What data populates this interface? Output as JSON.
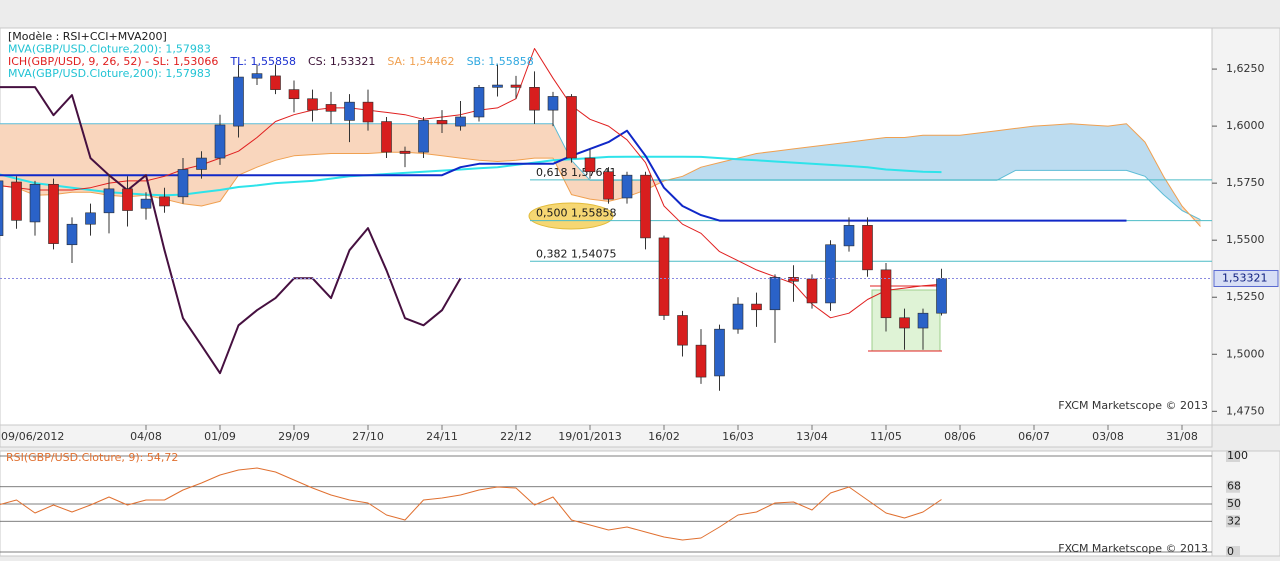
{
  "chart_data": [
    {
      "type": "candlestick",
      "header": [
        [
          {
            "text": "[Modèle : RSI+CCI+MVA200]",
            "color": "#1a1a1a"
          }
        ],
        [
          {
            "text": "MVA(GBP/USD.Cloture,200): 1,57983",
            "color": "#22c3d4"
          }
        ],
        [
          {
            "text": "ICH(GBP/USD, 9, 26, 52) -  SL: 1,53066",
            "color": "#e02020"
          },
          {
            "text": "TL: 1,55858",
            "color": "#1a2fd0"
          },
          {
            "text": "CS: 1,53321",
            "color": "#3a1035"
          },
          {
            "text": "SA: 1,54462",
            "color": "#f0a050"
          },
          {
            "text": "SB: 1,55858",
            "color": "#30a8e0"
          }
        ],
        [
          {
            "text": "MVA(GBP/USD.Cloture,200): 1,57983",
            "color": "#22c3d4"
          }
        ]
      ],
      "categories": [
        "09/06/2012",
        null,
        null,
        null,
        null,
        null,
        null,
        null,
        "04/08",
        null,
        null,
        null,
        "01/09",
        null,
        null,
        null,
        "29/09",
        null,
        null,
        null,
        "27/10",
        null,
        null,
        null,
        "24/11",
        null,
        null,
        null,
        "22/12",
        null,
        null,
        null,
        "19/01/2013",
        null,
        null,
        null,
        "16/02",
        null,
        null,
        null,
        "16/03",
        null,
        null,
        null,
        "13/04",
        null,
        null,
        null,
        "11/05",
        null,
        null,
        null,
        "08/06",
        null,
        null,
        null,
        "06/07",
        null,
        null,
        null,
        "03/08",
        null,
        null,
        null,
        "31/08",
        null
      ],
      "open": [
        1.552,
        1.5755,
        1.558,
        1.5745,
        1.548,
        1.557,
        1.562,
        1.5725,
        1.564,
        1.569,
        1.569,
        1.581,
        1.586,
        1.6,
        1.621,
        1.622,
        1.616,
        1.612,
        1.6095,
        1.6025,
        1.6105,
        1.602,
        1.589,
        1.5886,
        1.6025,
        1.6,
        1.604,
        1.617,
        1.618,
        1.617,
        1.607,
        1.613,
        1.586,
        1.58,
        1.5685,
        1.5785,
        1.551,
        1.517,
        1.504,
        1.4905,
        1.511,
        1.522,
        1.5195,
        1.5337,
        1.533,
        1.5225,
        1.5475,
        1.5565,
        1.537,
        1.516,
        1.5115,
        1.518,
        null,
        null,
        null,
        null,
        null,
        null,
        null,
        null,
        null,
        null,
        null,
        null,
        null,
        null
      ],
      "high": [
        1.578,
        1.578,
        1.576,
        1.577,
        1.56,
        1.566,
        1.579,
        1.578,
        1.571,
        1.573,
        1.586,
        1.589,
        1.605,
        1.627,
        1.627,
        1.627,
        1.62,
        1.616,
        1.615,
        1.614,
        1.616,
        1.604,
        1.591,
        1.604,
        1.607,
        1.611,
        1.618,
        1.627,
        1.622,
        1.624,
        1.615,
        1.614,
        1.59,
        1.582,
        1.58,
        1.58,
        1.552,
        1.519,
        1.511,
        1.513,
        1.525,
        1.527,
        1.535,
        1.539,
        1.535,
        1.55,
        1.56,
        1.56,
        1.54,
        1.52,
        1.52,
        1.5375,
        null,
        null,
        null,
        null,
        null,
        null,
        null,
        null,
        null,
        null,
        null,
        null,
        null,
        null
      ],
      "low": [
        1.55,
        1.555,
        1.552,
        1.546,
        1.54,
        1.552,
        1.553,
        1.556,
        1.559,
        1.562,
        1.566,
        1.577,
        1.583,
        1.595,
        1.618,
        1.614,
        1.606,
        1.602,
        1.601,
        1.593,
        1.598,
        1.586,
        1.582,
        1.586,
        1.597,
        1.598,
        1.602,
        1.613,
        1.612,
        1.601,
        1.6,
        1.584,
        1.577,
        1.566,
        1.566,
        1.546,
        1.515,
        1.499,
        1.487,
        1.484,
        1.509,
        1.512,
        1.505,
        1.523,
        1.52,
        1.519,
        1.545,
        1.534,
        1.51,
        1.502,
        1.502,
        1.517,
        null,
        null,
        null,
        null,
        null,
        null,
        null,
        null,
        null,
        null,
        null,
        null,
        null,
        null
      ],
      "close": [
        1.576,
        1.5587,
        1.5745,
        1.5485,
        1.557,
        1.562,
        1.5725,
        1.563,
        1.568,
        1.565,
        1.581,
        1.586,
        1.6005,
        1.6215,
        1.623,
        1.616,
        1.612,
        1.607,
        1.6065,
        1.6105,
        1.6018,
        1.5886,
        1.588,
        1.6025,
        1.601,
        1.604,
        1.617,
        1.618,
        1.617,
        1.607,
        1.613,
        1.586,
        1.58,
        1.568,
        1.5785,
        1.551,
        1.517,
        1.504,
        1.49,
        1.511,
        1.522,
        1.5195,
        1.5337,
        1.532,
        1.5225,
        1.548,
        1.5565,
        1.537,
        1.516,
        1.5115,
        1.518,
        1.53321,
        null,
        null,
        null,
        null,
        null,
        null,
        null,
        null,
        null,
        null,
        null,
        null,
        null,
        null
      ],
      "up_color": "#2a62c8",
      "down_color": "#d81e1e",
      "span_a": {
        "color": "#f0a050",
        "values": [
          1.574,
          1.573,
          1.5697,
          1.57,
          1.571,
          1.571,
          1.5697,
          1.569,
          1.5697,
          1.568,
          1.566,
          1.565,
          1.567,
          1.5785,
          1.582,
          1.585,
          1.587,
          1.5875,
          1.588,
          1.588,
          1.588,
          1.5885,
          1.5885,
          1.588,
          1.587,
          1.586,
          1.585,
          1.5845,
          1.585,
          1.586,
          1.586,
          1.57,
          1.568,
          1.567,
          1.569,
          1.572,
          1.576,
          1.578,
          1.582,
          1.584,
          1.586,
          1.588,
          1.589,
          1.59,
          1.591,
          1.592,
          1.593,
          1.594,
          1.595,
          1.595,
          1.596,
          1.596,
          1.596,
          1.597,
          1.598,
          1.599,
          1.6,
          1.6005,
          1.601,
          1.6005,
          1.6,
          1.601,
          1.593,
          1.578,
          1.565,
          1.556
        ]
      },
      "span_b": {
        "color": "#5cbcd6",
        "values": [
          1.601,
          1.601,
          1.601,
          1.601,
          1.601,
          1.601,
          1.601,
          1.601,
          1.601,
          1.601,
          1.601,
          1.601,
          1.601,
          1.601,
          1.601,
          1.601,
          1.601,
          1.601,
          1.601,
          1.601,
          1.601,
          1.601,
          1.601,
          1.601,
          1.601,
          1.601,
          1.601,
          1.601,
          1.601,
          1.601,
          1.601,
          1.585,
          1.5763,
          1.5763,
          1.5763,
          1.5763,
          1.5763,
          1.5763,
          1.5763,
          1.5763,
          1.5763,
          1.5763,
          1.5763,
          1.5763,
          1.5763,
          1.5763,
          1.5763,
          1.5763,
          1.5763,
          1.5763,
          1.5763,
          1.5763,
          1.5763,
          1.5763,
          1.5763,
          1.5806,
          1.5806,
          1.5806,
          1.5806,
          1.5806,
          1.5806,
          1.5806,
          1.578,
          1.57,
          1.563,
          1.559
        ]
      },
      "cloud_colors": {
        "bull": "#bcdcf0",
        "bear": "#f9d6bd"
      },
      "mva": {
        "color": "#2ee3ea",
        "values": [
          1.579,
          1.577,
          1.575,
          1.574,
          1.573,
          1.572,
          1.571,
          1.5705,
          1.57,
          1.5697,
          1.57,
          1.571,
          1.572,
          1.5733,
          1.574,
          1.575,
          1.5755,
          1.576,
          1.577,
          1.578,
          1.5785,
          1.579,
          1.5795,
          1.58,
          1.5805,
          1.581,
          1.5815,
          1.582,
          1.583,
          1.584,
          1.585,
          1.5855,
          1.586,
          1.5865,
          1.5866,
          1.5866,
          1.5866,
          1.5866,
          1.5865,
          1.586,
          1.5855,
          1.585,
          1.5845,
          1.584,
          1.5835,
          1.583,
          1.5825,
          1.582,
          1.581,
          1.5805,
          1.58,
          1.57983,
          null,
          null,
          null,
          null,
          null,
          null,
          null,
          null,
          null,
          null,
          null,
          null,
          null,
          null
        ]
      },
      "kijun": {
        "color": "#1028c8",
        "values": [
          1.5785,
          1.5785,
          1.5785,
          1.5785,
          1.5785,
          1.5785,
          1.5785,
          1.5785,
          1.5785,
          1.5785,
          1.5785,
          1.5785,
          1.5785,
          1.5785,
          1.5785,
          1.5785,
          1.5785,
          1.5785,
          1.5785,
          1.5785,
          1.5785,
          1.5785,
          1.5785,
          1.5785,
          1.5785,
          1.582,
          1.5835,
          1.5835,
          1.5835,
          1.5835,
          1.5835,
          1.587,
          1.59,
          1.593,
          1.598,
          1.587,
          1.573,
          1.565,
          1.561,
          1.55858,
          1.55858,
          1.55858,
          1.55858,
          1.55858,
          1.55858,
          1.55858,
          1.55858,
          1.55858,
          1.55858,
          1.55858,
          1.55858,
          1.55858,
          1.55858,
          1.55858,
          1.55858,
          1.55858,
          1.55858,
          1.55858,
          1.55858,
          1.55858,
          1.55858,
          1.55858,
          null,
          null,
          null,
          null
        ]
      },
      "tenkan": {
        "color": "#e02020",
        "values": [
          1.574,
          1.573,
          1.572,
          1.572,
          1.572,
          1.573,
          1.575,
          1.576,
          1.576,
          1.578,
          1.581,
          1.583,
          1.586,
          1.589,
          1.595,
          1.602,
          1.605,
          1.607,
          1.608,
          1.608,
          1.607,
          1.606,
          1.605,
          1.603,
          1.604,
          1.605,
          1.607,
          1.608,
          1.612,
          1.634,
          1.621,
          1.609,
          1.603,
          1.6,
          1.594,
          1.584,
          1.565,
          1.557,
          1.553,
          1.545,
          1.541,
          1.537,
          1.534,
          1.531,
          1.522,
          1.516,
          1.518,
          1.524,
          1.528,
          1.529,
          1.53,
          1.53066,
          null,
          null,
          null,
          null,
          null,
          null,
          null,
          null,
          null,
          null,
          null,
          null,
          null,
          null
        ]
      },
      "chikou": {
        "color": "#461040",
        "values": [
          1.6171,
          1.6171,
          1.6171,
          1.6048,
          1.6136,
          1.586,
          1.5785,
          1.5719,
          1.5785,
          1.5456,
          1.5158,
          1.5039,
          1.4917,
          1.5127,
          1.5193,
          1.5246,
          1.5333,
          1.5333,
          1.5246,
          1.5456,
          1.5553,
          1.5368,
          1.5158,
          1.5127,
          1.5193,
          1.5333,
          null,
          null,
          null,
          null,
          null,
          null,
          null,
          null,
          null,
          null,
          null,
          null,
          null,
          null,
          null,
          null,
          null,
          null,
          null,
          null,
          null,
          null,
          null,
          null,
          null,
          null,
          null,
          null,
          null,
          null,
          null,
          null,
          null,
          null,
          null,
          null,
          null,
          null,
          null,
          null
        ]
      },
      "fib_color": "#4cbcc6",
      "fib_levels": [
        {
          "value": 1.57641,
          "label": "0,618 1,57641"
        },
        {
          "value": 1.55858,
          "label": "0,500 1,55858"
        },
        {
          "value": 1.54075,
          "label": "0,382 1,54075"
        }
      ],
      "last_price": {
        "value": 1.53321,
        "label": "1,53321"
      },
      "ylim": [
        1.469,
        1.643
      ],
      "yticks": [
        {
          "value": 1.475,
          "label": "1,4750"
        },
        {
          "value": 1.5,
          "label": "1,5000"
        },
        {
          "value": 1.525,
          "label": "1,5250"
        },
        {
          "value": 1.55,
          "label": "1,5500"
        },
        {
          "value": 1.575,
          "label": "1,5750"
        },
        {
          "value": 1.6,
          "label": "1,6000"
        },
        {
          "value": 1.625,
          "label": "1,6250"
        }
      ],
      "watermark": "FXCM Marketscope © 2013"
    },
    {
      "type": "line",
      "title": "RSI(GBP/USD.Cloture, 9): 54,72",
      "color": "#e07030",
      "values": [
        49,
        54.2,
        40.6,
        49,
        41.7,
        49,
        57.3,
        49,
        54.2,
        54.2,
        64.6,
        71.9,
        80.2,
        85.4,
        87.5,
        83.3,
        75,
        66.7,
        59.4,
        54.2,
        51,
        38.5,
        33.3,
        54.2,
        56.3,
        59.4,
        64.6,
        67.7,
        66.7,
        49,
        57.3,
        33.3,
        28.1,
        22.9,
        26,
        20.8,
        15.6,
        12.5,
        14.6,
        26,
        38.5,
        41.7,
        51,
        52.1,
        43.8,
        61.5,
        67.7,
        54.2,
        40.6,
        35.4,
        41.7,
        54.72,
        null,
        null,
        null,
        null,
        null,
        null,
        null,
        null,
        null,
        null,
        null,
        null,
        null,
        null
      ],
      "ylim": [
        0,
        100
      ],
      "yticks": [
        0,
        32,
        50,
        68,
        100
      ],
      "watermark": "FXCM Marketscope © 2013"
    }
  ]
}
